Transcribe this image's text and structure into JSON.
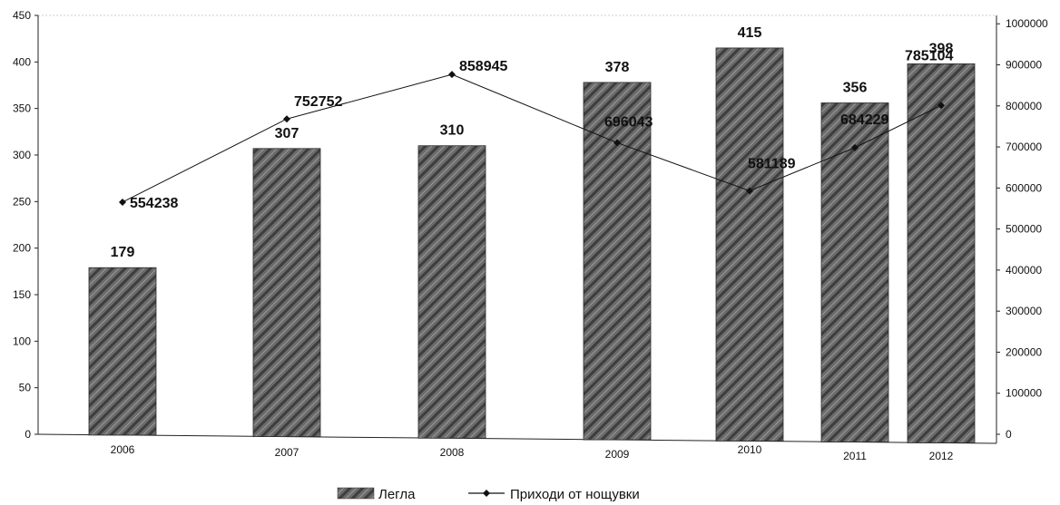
{
  "chart_data": {
    "type": "bar",
    "categories": [
      "2006",
      "2007",
      "2008",
      "2009",
      "2010",
      "2011",
      "2012"
    ],
    "series": [
      {
        "name": "Легла",
        "kind": "bar",
        "axis": "left",
        "values": [
          179,
          307,
          310,
          378,
          415,
          356,
          398
        ]
      },
      {
        "name": "Приходи от нощувки",
        "kind": "line",
        "axis": "right",
        "values": [
          554238,
          752752,
          858945,
          696043,
          581189,
          684229,
          785104
        ]
      }
    ],
    "left_axis": {
      "ylim": [
        0,
        450
      ],
      "ticks": [
        "0",
        "50",
        "100",
        "150",
        "200",
        "250",
        "300",
        "350",
        "400",
        "450"
      ]
    },
    "right_axis": {
      "ylim": [
        0,
        1000000
      ],
      "ticks": [
        "0",
        "100000",
        "200000",
        "300000",
        "400000",
        "500000",
        "600000",
        "700000",
        "800000",
        "900000",
        "1000000"
      ]
    },
    "grid": false,
    "legend_position": "bottom",
    "colors": {
      "bar": "#6e6e6e",
      "bar_dark": "#3a3a3a",
      "line": "#111111"
    }
  }
}
